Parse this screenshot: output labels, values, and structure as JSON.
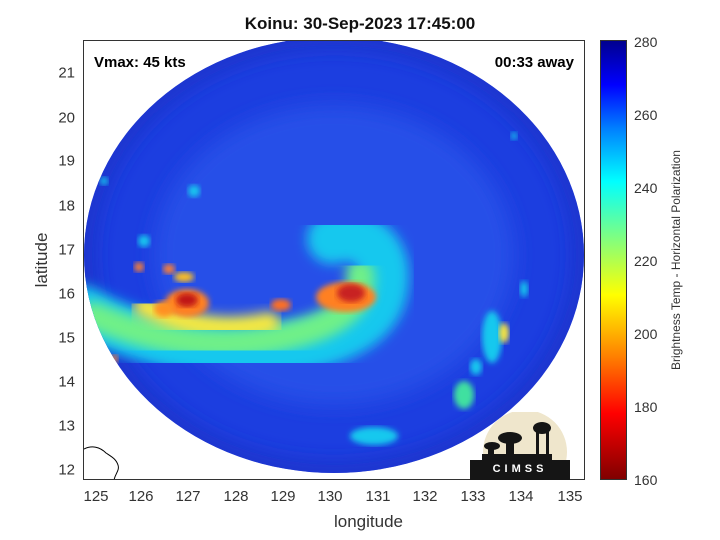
{
  "title": "Koinu: 30-Sep-2023 17:45:00",
  "vmax_label": "Vmax: 45 kts",
  "time_away": "00:33 away",
  "xlabel": "longitude",
  "ylabel": "latitude",
  "x_ticks": [
    "125",
    "126",
    "127",
    "128",
    "129",
    "130",
    "131",
    "132",
    "133",
    "134",
    "135"
  ],
  "y_ticks": [
    "21",
    "20",
    "19",
    "18",
    "17",
    "16",
    "15",
    "14",
    "13",
    "12"
  ],
  "colorbar": {
    "label": "Brightness Temp - Horizontal Polarization",
    "ticks": [
      "280",
      "260",
      "240",
      "220",
      "200",
      "180",
      "160"
    ],
    "range": [
      160,
      280
    ]
  },
  "map_extent": {
    "lon": [
      124.8,
      135.3
    ],
    "lat": [
      11.8,
      21.9
    ]
  },
  "logo_text": "CIMSS",
  "colors": {
    "background_field": "#1c3ee0",
    "land_outline": "#000000"
  }
}
